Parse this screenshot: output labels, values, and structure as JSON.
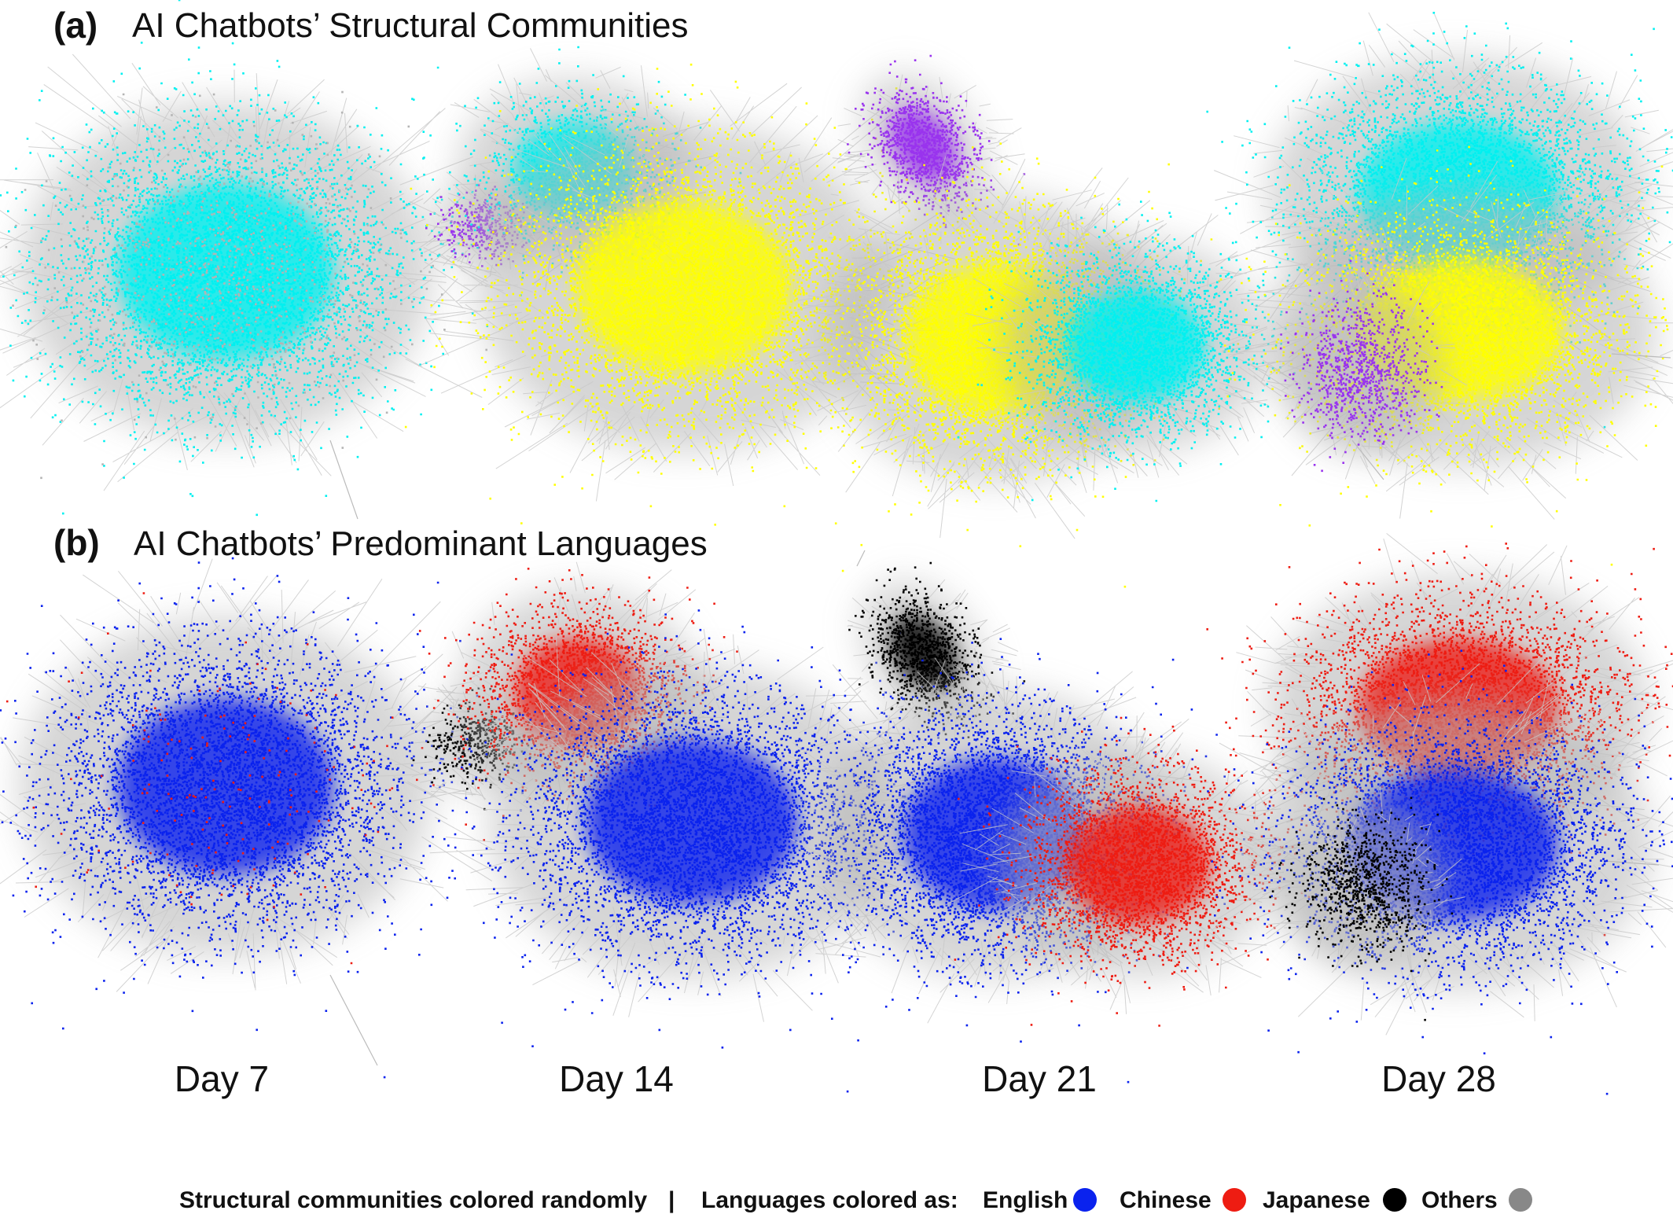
{
  "panels": [
    {
      "letter": "(a)",
      "title": "AI Chatbots’ Structural Communities"
    },
    {
      "letter": "(b)",
      "title": "AI Chatbots’ Predominant Languages"
    }
  ],
  "days": [
    "Day 7",
    "Day 14",
    "Day 21",
    "Day 28"
  ],
  "legend": {
    "left": "Structural communities colored randomly",
    "separator": "|",
    "prefix": "Languages colored as:",
    "items": [
      {
        "label": "English",
        "color": "#0a22ee"
      },
      {
        "label": "Chinese",
        "color": "#ee1c12"
      },
      {
        "label": "Japanese",
        "color": "#000000"
      },
      {
        "label": "Others",
        "color": "#888888"
      }
    ]
  },
  "colors": {
    "community_cyan": "#00f0f0",
    "community_yellow": "#ffff00",
    "community_purple": "#9933ee",
    "edge_gray": "#b4b4b4"
  }
}
